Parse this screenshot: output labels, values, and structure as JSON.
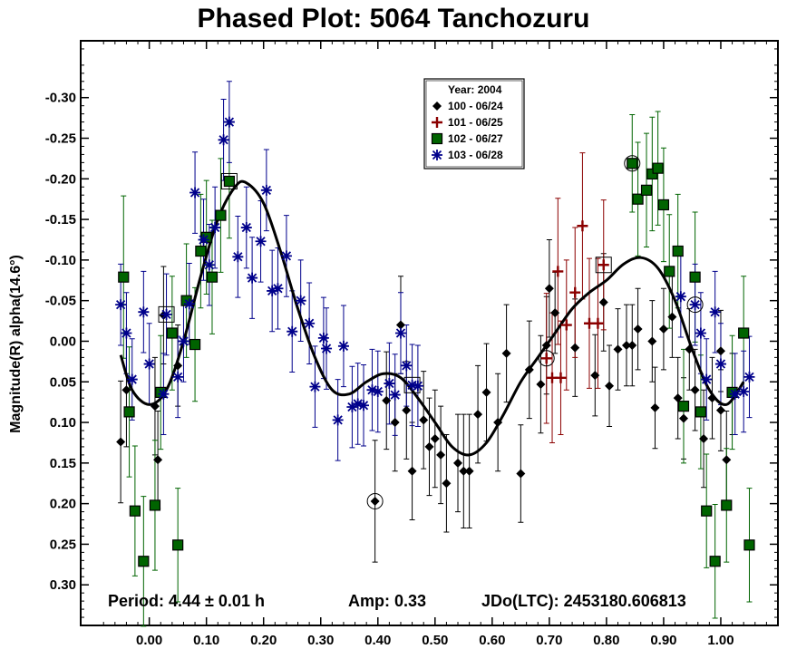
{
  "chart_data": {
    "type": "scatter",
    "title": "Phased Plot: 5064 Tanchozuru",
    "ylabel": "Magnitude(R) alpha(14.6°)",
    "xlabel": "",
    "xlim": [
      -0.12,
      1.1
    ],
    "ylim": [
      0.35,
      -0.37
    ],
    "y_inverted": true,
    "x_ticks": [
      0.0,
      0.1,
      0.2,
      0.3,
      0.4,
      0.5,
      0.6,
      0.7,
      0.8,
      0.9,
      1.0
    ],
    "x_tick_labels": [
      "0.00",
      "0.10",
      "0.20",
      "0.30",
      "0.40",
      "0.50",
      "0.60",
      "0.70",
      "0.80",
      "0.90",
      "1.00"
    ],
    "y_ticks": [
      -0.3,
      -0.25,
      -0.2,
      -0.15,
      -0.1,
      -0.05,
      0.0,
      0.05,
      0.1,
      0.15,
      0.2,
      0.25,
      0.3
    ],
    "y_tick_labels": [
      "-0.30",
      "-0.25",
      "-0.20",
      "-0.15",
      "-0.10",
      "-0.05",
      "0.00",
      "0.05",
      "0.10",
      "0.15",
      "0.20",
      "0.25",
      "0.30"
    ],
    "grid": false,
    "legend": {
      "placement": "top-center",
      "header": "Year: 2004",
      "entries": [
        {
          "label": "100 - 06/24",
          "marker": "diamond",
          "color": "#000000"
        },
        {
          "label": "101 - 06/25",
          "marker": "plus",
          "color": "#8b0000"
        },
        {
          "label": "102 - 06/27",
          "marker": "square",
          "color": "#006400"
        },
        {
          "label": "103 - 06/28",
          "marker": "asterisk",
          "color": "#00008b"
        }
      ]
    },
    "annotations": {
      "period": "Period: 4.44 ± 0.01 h",
      "amp": "Amp: 0.33",
      "jdo": "JDo(LTC): 2453180.606813"
    },
    "fit_curve": {
      "color": "#000000",
      "x": [
        -0.05,
        -0.03,
        0.0,
        0.03,
        0.06,
        0.09,
        0.12,
        0.15,
        0.17,
        0.2,
        0.23,
        0.26,
        0.29,
        0.32,
        0.35,
        0.38,
        0.41,
        0.44,
        0.47,
        0.5,
        0.53,
        0.56,
        0.59,
        0.62,
        0.65,
        0.68,
        0.71,
        0.74,
        0.77,
        0.8,
        0.83,
        0.86,
        0.89,
        0.92,
        0.95,
        0.98,
        1.01,
        1.04
      ],
      "y": [
        0.017,
        0.06,
        0.078,
        0.06,
        0.0,
        -0.08,
        -0.15,
        -0.19,
        -0.195,
        -0.17,
        -0.11,
        -0.04,
        0.02,
        0.06,
        0.065,
        0.05,
        0.04,
        0.045,
        0.07,
        0.1,
        0.13,
        0.14,
        0.125,
        0.09,
        0.05,
        0.02,
        -0.01,
        -0.04,
        -0.06,
        -0.075,
        -0.095,
        -0.103,
        -0.09,
        -0.05,
        0.01,
        0.06,
        0.078,
        0.05
      ]
    },
    "series": [
      {
        "name": "100 - 06/24",
        "marker": "diamond",
        "color": "#000000",
        "points": [
          {
            "x": -0.05,
            "y": 0.124,
            "e": 0.075
          },
          {
            "x": -0.04,
            "y": 0.06,
            "e": 0.07
          },
          {
            "x": 0.01,
            "y": 0.08,
            "e": 0.06
          },
          {
            "x": 0.015,
            "y": 0.146,
            "e": 0.06
          },
          {
            "x": 0.025,
            "y": -0.032,
            "e": 0.06
          },
          {
            "x": 0.05,
            "y": 0.03,
            "e": 0.05
          },
          {
            "x": 0.395,
            "y": 0.197,
            "e": 0.075,
            "circled": true
          },
          {
            "x": 0.415,
            "y": 0.073,
            "e": 0.06
          },
          {
            "x": 0.43,
            "y": 0.1,
            "e": 0.06
          },
          {
            "x": 0.44,
            "y": -0.02,
            "e": 0.06
          },
          {
            "x": 0.45,
            "y": 0.085,
            "e": 0.06
          },
          {
            "x": 0.46,
            "y": 0.16,
            "e": 0.06
          },
          {
            "x": 0.48,
            "y": 0.097,
            "e": 0.06
          },
          {
            "x": 0.49,
            "y": 0.13,
            "e": 0.06
          },
          {
            "x": 0.5,
            "y": 0.12,
            "e": 0.06
          },
          {
            "x": 0.51,
            "y": 0.14,
            "e": 0.06
          },
          {
            "x": 0.52,
            "y": 0.175,
            "e": 0.06
          },
          {
            "x": 0.54,
            "y": 0.15,
            "e": 0.06
          },
          {
            "x": 0.55,
            "y": 0.16,
            "e": 0.07
          },
          {
            "x": 0.56,
            "y": 0.16,
            "e": 0.07
          },
          {
            "x": 0.575,
            "y": 0.09,
            "e": 0.06
          },
          {
            "x": 0.59,
            "y": 0.063,
            "e": 0.06
          },
          {
            "x": 0.61,
            "y": 0.1,
            "e": 0.06
          },
          {
            "x": 0.625,
            "y": 0.015,
            "e": 0.06
          },
          {
            "x": 0.65,
            "y": 0.163,
            "e": 0.06
          },
          {
            "x": 0.665,
            "y": 0.035,
            "e": 0.06
          },
          {
            "x": 0.685,
            "y": 0.053,
            "e": 0.06
          },
          {
            "x": 0.695,
            "y": 0.005,
            "e": 0.06
          },
          {
            "x": 0.7,
            "y": -0.065,
            "e": 0.06
          },
          {
            "x": 0.71,
            "y": -0.035,
            "e": 0.05
          },
          {
            "x": 0.745,
            "y": 0.008,
            "e": 0.06
          },
          {
            "x": 0.78,
            "y": 0.042,
            "e": 0.05
          },
          {
            "x": 0.795,
            "y": -0.048,
            "e": 0.06
          },
          {
            "x": 0.805,
            "y": 0.055,
            "e": 0.05
          },
          {
            "x": 0.82,
            "y": 0.01,
            "e": 0.05
          },
          {
            "x": 0.835,
            "y": 0.005,
            "e": 0.05
          },
          {
            "x": 0.845,
            "y": 0.005,
            "e": 0.05
          },
          {
            "x": 0.855,
            "y": -0.015,
            "e": 0.05
          },
          {
            "x": 0.88,
            "y": 0.0,
            "e": 0.05
          },
          {
            "x": 0.885,
            "y": 0.082,
            "e": 0.05
          },
          {
            "x": 0.9,
            "y": -0.015,
            "e": 0.05
          },
          {
            "x": 0.915,
            "y": -0.03,
            "e": 0.05
          },
          {
            "x": 0.925,
            "y": 0.07,
            "e": 0.05
          },
          {
            "x": 0.935,
            "y": 0.095,
            "e": 0.05
          },
          {
            "x": 0.945,
            "y": 0.01,
            "e": 0.05
          },
          {
            "x": 0.955,
            "y": 0.06,
            "e": 0.05
          },
          {
            "x": 0.97,
            "y": 0.12,
            "e": 0.06
          },
          {
            "x": 0.985,
            "y": 0.07,
            "e": 0.05
          },
          {
            "x": 1.0,
            "y": 0.085,
            "e": 0.05
          },
          {
            "x": 1.0,
            "y": 0.012,
            "e": 0.05
          },
          {
            "x": 1.01,
            "y": 0.146,
            "e": 0.06
          },
          {
            "x": 1.02,
            "y": 0.065,
            "e": 0.05
          }
        ]
      },
      {
        "name": "101 - 06/25",
        "marker": "plus",
        "color": "#8b0000",
        "points": [
          {
            "x": 0.695,
            "y": 0.021,
            "e": 0.08,
            "circled": true
          },
          {
            "x": 0.705,
            "y": 0.045,
            "e": 0.08
          },
          {
            "x": 0.715,
            "y": -0.086,
            "e": 0.09
          },
          {
            "x": 0.72,
            "y": 0.045,
            "e": 0.07
          },
          {
            "x": 0.73,
            "y": -0.02,
            "e": 0.08
          },
          {
            "x": 0.745,
            "y": -0.06,
            "e": 0.08
          },
          {
            "x": 0.758,
            "y": -0.142,
            "e": 0.09
          },
          {
            "x": 0.77,
            "y": -0.022,
            "e": 0.08
          },
          {
            "x": 0.785,
            "y": -0.022,
            "e": 0.08
          },
          {
            "x": 0.795,
            "y": -0.094,
            "e": 0.08,
            "boxed": true
          }
        ]
      },
      {
        "name": "102 - 06/27",
        "marker": "square",
        "color": "#006400",
        "points": [
          {
            "x": -0.045,
            "y": -0.079,
            "e": 0.1
          },
          {
            "x": -0.035,
            "y": 0.087,
            "e": 0.08
          },
          {
            "x": -0.025,
            "y": 0.209,
            "e": 0.08
          },
          {
            "x": -0.01,
            "y": 0.271,
            "e": 0.08
          },
          {
            "x": 0.01,
            "y": 0.202,
            "e": 0.08
          },
          {
            "x": 0.02,
            "y": 0.063,
            "e": 0.07
          },
          {
            "x": 0.04,
            "y": -0.01,
            "e": 0.07
          },
          {
            "x": 0.05,
            "y": 0.251,
            "e": 0.07
          },
          {
            "x": 0.065,
            "y": -0.05,
            "e": 0.07
          },
          {
            "x": 0.08,
            "y": 0.004,
            "e": 0.07
          },
          {
            "x": 0.09,
            "y": -0.111,
            "e": 0.07
          },
          {
            "x": 0.1,
            "y": -0.128,
            "e": 0.07
          },
          {
            "x": 0.11,
            "y": -0.079,
            "e": 0.07
          },
          {
            "x": 0.125,
            "y": -0.155,
            "e": 0.07
          },
          {
            "x": 0.14,
            "y": -0.197,
            "e": 0.07,
            "boxed": true
          },
          {
            "x": 0.845,
            "y": -0.219,
            "e": 0.06,
            "circled": true
          },
          {
            "x": 0.855,
            "y": -0.175,
            "e": 0.07
          },
          {
            "x": 0.87,
            "y": -0.186,
            "e": 0.07
          },
          {
            "x": 0.88,
            "y": -0.206,
            "e": 0.07
          },
          {
            "x": 0.89,
            "y": -0.213,
            "e": 0.07
          },
          {
            "x": 0.9,
            "y": -0.168,
            "e": 0.07
          },
          {
            "x": 0.91,
            "y": -0.086,
            "e": 0.07
          },
          {
            "x": 0.925,
            "y": -0.111,
            "e": 0.07
          },
          {
            "x": 0.935,
            "y": 0.08,
            "e": 0.07
          },
          {
            "x": 0.955,
            "y": -0.079,
            "e": 0.08
          },
          {
            "x": 0.965,
            "y": 0.087,
            "e": 0.07
          },
          {
            "x": 0.975,
            "y": 0.209,
            "e": 0.07
          },
          {
            "x": 0.99,
            "y": 0.271,
            "e": 0.07
          },
          {
            "x": 1.01,
            "y": 0.202,
            "e": 0.07
          },
          {
            "x": 1.02,
            "y": 0.063,
            "e": 0.07
          },
          {
            "x": 1.04,
            "y": -0.01,
            "e": 0.07
          },
          {
            "x": 1.05,
            "y": 0.251,
            "e": 0.07
          }
        ]
      },
      {
        "name": "103 - 06/28",
        "marker": "asterisk",
        "color": "#00008b",
        "points": [
          {
            "x": -0.05,
            "y": -0.045,
            "e": 0.05
          },
          {
            "x": -0.04,
            "y": -0.01,
            "e": 0.05
          },
          {
            "x": -0.03,
            "y": 0.047,
            "e": 0.05
          },
          {
            "x": -0.01,
            "y": -0.036,
            "e": 0.05
          },
          {
            "x": 0.0,
            "y": 0.028,
            "e": 0.05
          },
          {
            "x": 0.025,
            "y": 0.065,
            "e": 0.05
          },
          {
            "x": 0.03,
            "y": -0.033,
            "e": 0.05,
            "boxed": true
          },
          {
            "x": 0.05,
            "y": 0.044,
            "e": 0.05
          },
          {
            "x": 0.06,
            "y": 0.0,
            "e": 0.05
          },
          {
            "x": 0.07,
            "y": -0.046,
            "e": 0.05
          },
          {
            "x": 0.08,
            "y": -0.183,
            "e": 0.05
          },
          {
            "x": 0.095,
            "y": -0.125,
            "e": 0.05
          },
          {
            "x": 0.105,
            "y": -0.094,
            "e": 0.05
          },
          {
            "x": 0.115,
            "y": -0.14,
            "e": 0.05
          },
          {
            "x": 0.13,
            "y": -0.248,
            "e": 0.05
          },
          {
            "x": 0.14,
            "y": -0.27,
            "e": 0.05
          },
          {
            "x": 0.155,
            "y": -0.104,
            "e": 0.05
          },
          {
            "x": 0.17,
            "y": -0.14,
            "e": 0.05
          },
          {
            "x": 0.18,
            "y": -0.078,
            "e": 0.05
          },
          {
            "x": 0.195,
            "y": -0.123,
            "e": 0.05
          },
          {
            "x": 0.205,
            "y": -0.186,
            "e": 0.05
          },
          {
            "x": 0.215,
            "y": -0.062,
            "e": 0.05
          },
          {
            "x": 0.225,
            "y": -0.065,
            "e": 0.05
          },
          {
            "x": 0.24,
            "y": -0.105,
            "e": 0.05
          },
          {
            "x": 0.25,
            "y": -0.012,
            "e": 0.05
          },
          {
            "x": 0.265,
            "y": -0.05,
            "e": 0.05
          },
          {
            "x": 0.28,
            "y": -0.022,
            "e": 0.05
          },
          {
            "x": 0.29,
            "y": 0.056,
            "e": 0.05
          },
          {
            "x": 0.305,
            "y": -0.004,
            "e": 0.05
          },
          {
            "x": 0.31,
            "y": 0.009,
            "e": 0.05
          },
          {
            "x": 0.33,
            "y": 0.097,
            "e": 0.05
          },
          {
            "x": 0.34,
            "y": 0.006,
            "e": 0.05
          },
          {
            "x": 0.355,
            "y": 0.081,
            "e": 0.05
          },
          {
            "x": 0.365,
            "y": 0.077,
            "e": 0.05
          },
          {
            "x": 0.375,
            "y": 0.079,
            "e": 0.05
          },
          {
            "x": 0.39,
            "y": 0.06,
            "e": 0.05
          },
          {
            "x": 0.4,
            "y": 0.062,
            "e": 0.05
          },
          {
            "x": 0.42,
            "y": 0.052,
            "e": 0.05
          },
          {
            "x": 0.43,
            "y": 0.066,
            "e": 0.05
          },
          {
            "x": 0.44,
            "y": -0.01,
            "e": 0.05
          },
          {
            "x": 0.45,
            "y": 0.03,
            "e": 0.05
          },
          {
            "x": 0.46,
            "y": 0.054,
            "e": 0.05,
            "boxed": true
          },
          {
            "x": 0.47,
            "y": 0.055,
            "e": 0.05
          },
          {
            "x": 0.93,
            "y": -0.055,
            "e": 0.05
          },
          {
            "x": 0.955,
            "y": -0.045,
            "e": 0.05,
            "circled": true
          },
          {
            "x": 0.965,
            "y": -0.01,
            "e": 0.05
          },
          {
            "x": 0.975,
            "y": 0.047,
            "e": 0.05
          },
          {
            "x": 0.99,
            "y": -0.036,
            "e": 0.05
          },
          {
            "x": 1.0,
            "y": 0.028,
            "e": 0.05
          },
          {
            "x": 1.025,
            "y": 0.065,
            "e": 0.05
          },
          {
            "x": 1.04,
            "y": 0.062,
            "e": 0.05
          },
          {
            "x": 1.05,
            "y": 0.044,
            "e": 0.05
          }
        ]
      }
    ]
  }
}
